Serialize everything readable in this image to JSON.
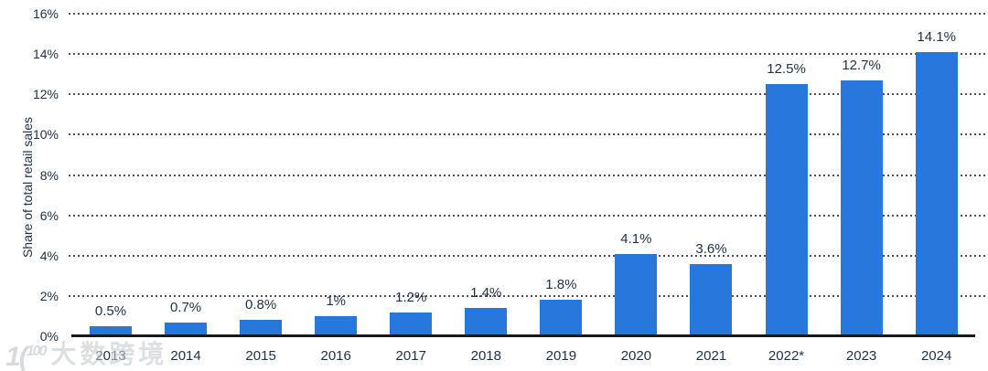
{
  "chart_data": {
    "type": "bar",
    "title": "",
    "xlabel": "",
    "ylabel": "Share of total retail sales",
    "categories": [
      "2013",
      "2014",
      "2015",
      "2016",
      "2017",
      "2018",
      "2019",
      "2020",
      "2021",
      "2022*",
      "2023",
      "2024"
    ],
    "values": [
      0.5,
      0.7,
      0.8,
      1,
      1.2,
      1.4,
      1.8,
      4.1,
      3.6,
      12.5,
      12.7,
      14.1
    ],
    "value_labels": [
      "0.5%",
      "0.7%",
      "0.8%",
      "1%",
      "1.2%",
      "1.4%",
      "1.8%",
      "4.1%",
      "3.6%",
      "12.5%",
      "12.7%",
      "14.1%"
    ],
    "ylim": [
      0,
      16
    ],
    "ytick_step": 2,
    "ytick_labels": [
      "0%",
      "2%",
      "4%",
      "6%",
      "8%",
      "10%",
      "12%",
      "14%",
      "16%"
    ],
    "grid": "horizontal-dotted",
    "legend_position": "none",
    "colors": {
      "bar": "#2777dd",
      "axis_text": "#1e3048",
      "gridline": "#4f4f4f",
      "baseline": "#17191c",
      "background": "#ffffff"
    }
  },
  "watermark": {
    "logo_text": "100",
    "text": "大数跨境"
  }
}
